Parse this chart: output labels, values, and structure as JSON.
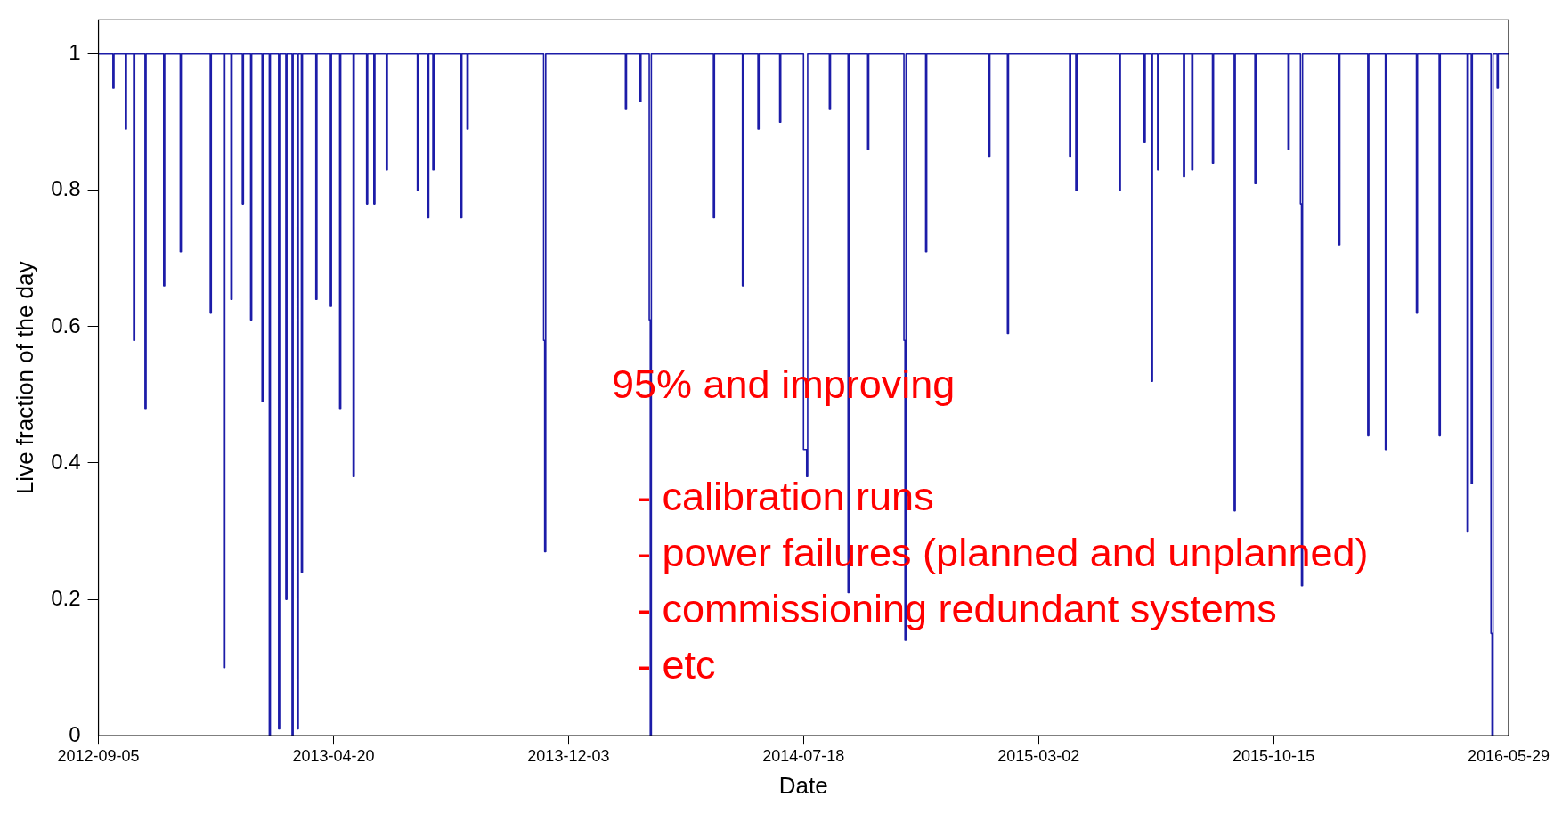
{
  "chart_data": {
    "type": "step",
    "xlabel": "Date",
    "ylabel": "Live fraction of the day",
    "xlim": [
      "2012-09-05",
      "2016-05-29"
    ],
    "xticks": [
      "2012-09-05",
      "2013-04-20",
      "2013-12-03",
      "2014-07-18",
      "2015-03-02",
      "2015-10-15",
      "2016-05-29"
    ],
    "ylim": [
      0,
      1.05
    ],
    "yticks": [
      0,
      0.2,
      0.4,
      0.6,
      0.8,
      1
    ],
    "grid": false,
    "legend": false,
    "marker": "none",
    "line_style": "solid",
    "annotations": [
      "95% and improving",
      "- calibration runs",
      "- power failures (planned and unplanned)",
      "- commissioning redundant systems",
      "- etc"
    ],
    "series": [
      {
        "color": "#1c1ca8",
        "x": [
          "2012-09-05",
          "2012-09-19",
          "2012-09-20",
          "2012-10-01",
          "2012-10-02",
          "2012-10-09",
          "2012-10-10",
          "2012-10-20",
          "2012-10-21",
          "2012-11-07",
          "2012-11-08",
          "2012-11-23",
          "2012-11-24",
          "2012-12-22",
          "2012-12-23",
          "2013-01-04",
          "2013-01-05",
          "2013-01-11",
          "2013-01-12",
          "2013-01-22",
          "2013-01-23",
          "2013-01-30",
          "2013-01-31",
          "2013-02-10",
          "2013-02-11",
          "2013-02-17",
          "2013-02-18",
          "2013-02-26",
          "2013-02-27",
          "2013-03-05",
          "2013-03-06",
          "2013-03-11",
          "2013-03-12",
          "2013-03-16",
          "2013-03-17",
          "2013-03-20",
          "2013-03-21",
          "2013-04-03",
          "2013-04-04",
          "2013-04-17",
          "2013-04-18",
          "2013-04-26",
          "2013-04-27",
          "2013-05-09",
          "2013-05-10",
          "2013-05-22",
          "2013-05-23",
          "2013-05-29",
          "2013-05-30",
          "2013-06-10",
          "2013-06-11",
          "2013-07-10",
          "2013-07-11",
          "2013-07-20",
          "2013-07-21",
          "2013-07-25",
          "2013-07-26",
          "2013-08-21",
          "2013-08-22",
          "2013-08-27",
          "2013-08-28",
          "2013-11-09",
          "2013-11-10",
          "2013-11-11",
          "2014-01-27",
          "2014-01-28",
          "2014-02-10",
          "2014-02-11",
          "2014-02-19",
          "2014-02-20",
          "2014-02-21",
          "2014-04-22",
          "2014-04-23",
          "2014-05-20",
          "2014-05-21",
          "2014-06-04",
          "2014-06-05",
          "2014-06-25",
          "2014-06-26",
          "2014-07-18",
          "2014-07-21",
          "2014-07-22",
          "2014-08-12",
          "2014-08-13",
          "2014-08-30",
          "2014-08-31",
          "2014-09-18",
          "2014-09-19",
          "2014-10-23",
          "2014-10-24",
          "2014-10-25",
          "2014-11-13",
          "2014-11-14",
          "2015-01-13",
          "2015-01-14",
          "2015-01-31",
          "2015-02-01",
          "2015-04-01",
          "2015-04-02",
          "2015-04-07",
          "2015-04-08",
          "2015-05-19",
          "2015-05-20",
          "2015-06-12",
          "2015-06-13",
          "2015-06-19",
          "2015-06-20",
          "2015-06-25",
          "2015-06-26",
          "2015-07-20",
          "2015-07-21",
          "2015-07-28",
          "2015-07-29",
          "2015-08-17",
          "2015-08-18",
          "2015-09-07",
          "2015-09-08",
          "2015-09-27",
          "2015-09-28",
          "2015-10-29",
          "2015-10-30",
          "2015-11-10",
          "2015-11-11",
          "2015-11-12",
          "2015-12-17",
          "2015-12-18",
          "2016-01-14",
          "2016-01-15",
          "2016-01-31",
          "2016-02-01",
          "2016-03-01",
          "2016-03-02",
          "2016-03-23",
          "2016-03-24",
          "2016-04-19",
          "2016-04-20",
          "2016-04-23",
          "2016-04-24",
          "2016-05-12",
          "2016-05-13",
          "2016-05-14",
          "2016-05-18",
          "2016-05-19",
          "2016-05-29"
        ],
        "values": [
          1,
          0.95,
          1,
          0.89,
          1,
          0.58,
          1,
          0.48,
          1,
          0.66,
          1,
          0.71,
          1,
          0.62,
          1,
          0.1,
          1,
          0.64,
          1,
          0.78,
          1,
          0.61,
          1,
          0.49,
          1,
          0,
          1,
          0.01,
          1,
          0.2,
          1,
          0,
          1,
          0.01,
          1,
          0.24,
          1,
          0.64,
          1,
          0.63,
          1,
          0.48,
          1,
          0.38,
          1,
          0.78,
          1,
          0.78,
          1,
          0.83,
          1,
          0.8,
          1,
          0.76,
          1,
          0.83,
          1,
          0.76,
          1,
          0.89,
          1,
          0.58,
          0.27,
          1,
          0.92,
          1,
          0.93,
          1,
          0.61,
          0,
          1,
          0.76,
          1,
          0.66,
          1,
          0.89,
          1,
          0.9,
          1,
          0.42,
          0.38,
          1,
          0.92,
          1,
          0.21,
          1,
          0.86,
          1,
          0.58,
          0.14,
          1,
          0.71,
          1,
          0.85,
          1,
          0.59,
          1,
          0.85,
          1,
          0.8,
          1,
          0.8,
          1,
          0.87,
          1,
          0.52,
          1,
          0.83,
          1,
          0.82,
          1,
          0.83,
          1,
          0.84,
          1,
          0.33,
          1,
          0.81,
          1,
          0.86,
          1,
          0.78,
          0.22,
          1,
          0.72,
          1,
          0.44,
          1,
          0.42,
          1,
          0.62,
          1,
          0.44,
          1,
          0.3,
          1,
          0.37,
          1,
          0.15,
          0,
          1,
          0.95,
          1,
          1
        ]
      }
    ]
  }
}
